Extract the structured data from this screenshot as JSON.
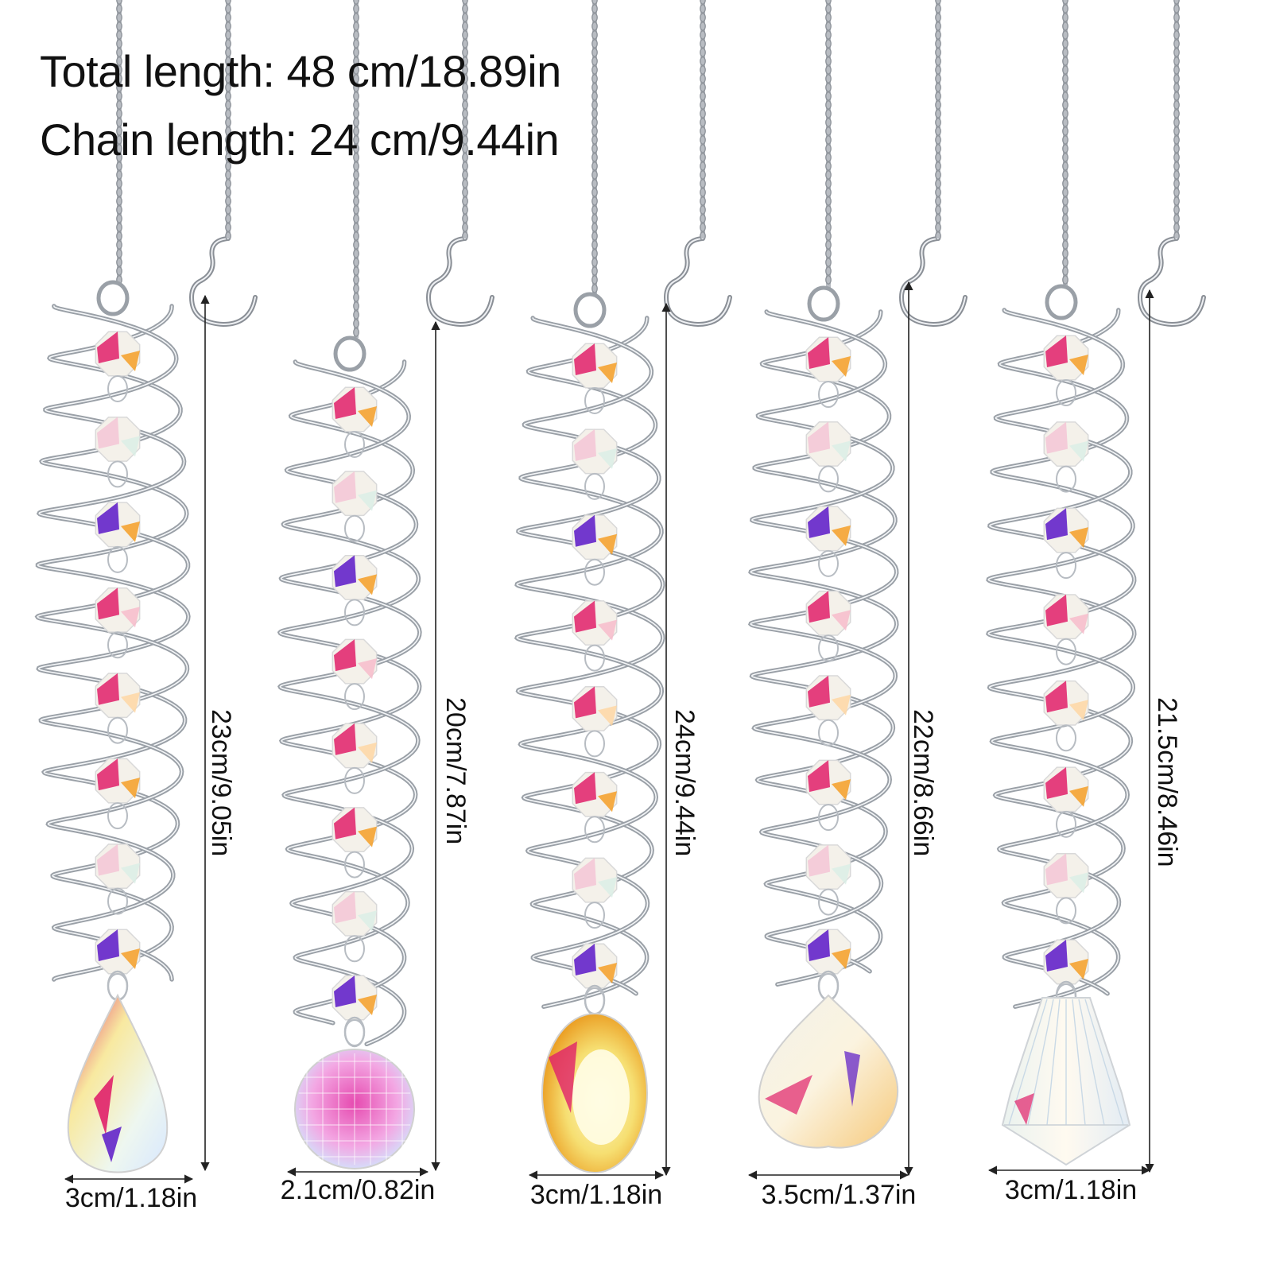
{
  "specs": {
    "total_length": "Total length: 48 cm/18.89in",
    "chain_length": "Chain length: 24 cm/9.44in"
  },
  "pendants": [
    {
      "shape": "teardrop-crystal",
      "height": "23cm/9.05in",
      "width": "3cm/1.18in"
    },
    {
      "shape": "ball-crystal",
      "height": "20cm/7.87in",
      "width": "2.1cm/0.82in"
    },
    {
      "shape": "oval-crystal",
      "height": "24cm/9.44in",
      "width": "3cm/1.18in"
    },
    {
      "shape": "heart-crystal",
      "height": "22cm/8.66in",
      "width": "3.5cm/1.37in"
    },
    {
      "shape": "cone-crystal",
      "height": "21.5cm/8.46in",
      "width": "3cm/1.18in"
    }
  ],
  "colors": {
    "metal": "#b8bcc2",
    "metal_highlight": "#eef0f3",
    "crystal_magenta": "#e0206a",
    "crystal_violet": "#5a18c8",
    "crystal_orange": "#f59a1a",
    "crystal_yellow": "#f8e37a",
    "crystal_pale": "#f4f1ea"
  }
}
